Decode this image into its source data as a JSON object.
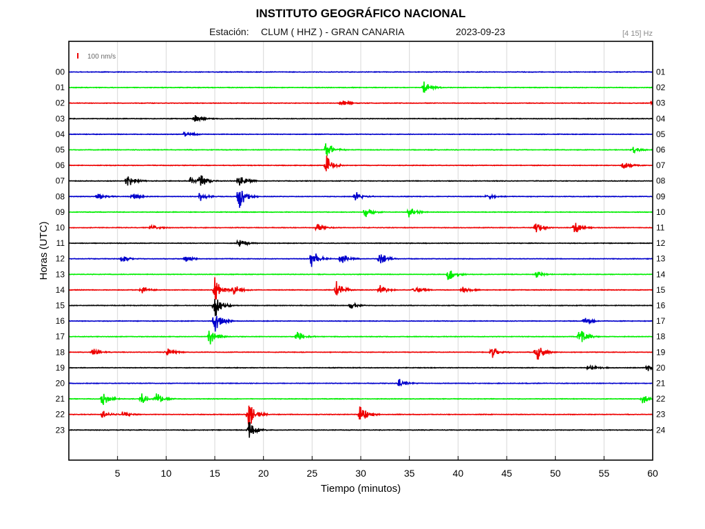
{
  "chart_data": {
    "type": "line",
    "title": "INSTITUTO GEOGRÁFICO NACIONAL",
    "station_label": "Estación:",
    "station": "CLUM ( HHZ ) - GRAN CANARIA",
    "date": "2023-09-23",
    "filter": "[4 15] Hz",
    "scale_label": "100 nm/s",
    "xlabel": "Tiempo (minutos)",
    "ylabel": "Horas (UTC)",
    "xlim": [
      0,
      60
    ],
    "x_ticks": [
      "5",
      "10",
      "15",
      "20",
      "25",
      "30",
      "35",
      "40",
      "45",
      "50",
      "55",
      "60"
    ],
    "left_labels": [
      "00",
      "01",
      "02",
      "03",
      "04",
      "05",
      "06",
      "07",
      "08",
      "09",
      "10",
      "11",
      "12",
      "13",
      "14",
      "15",
      "16",
      "17",
      "18",
      "19",
      "20",
      "21",
      "22",
      "23"
    ],
    "right_labels": [
      "01",
      "02",
      "03",
      "04",
      "05",
      "06",
      "07",
      "08",
      "09",
      "10",
      "11",
      "12",
      "13",
      "14",
      "15",
      "16",
      "17",
      "18",
      "19",
      "20",
      "21",
      "22",
      "23",
      "24"
    ],
    "grid": true,
    "trace_colors": [
      "#0000cc",
      "#00ee00",
      "#ee0000",
      "#000000"
    ],
    "series": [
      {
        "events": []
      },
      {
        "events": [
          [
            36.5,
            1.0
          ]
        ]
      },
      {
        "events": [
          [
            28,
            0.5
          ],
          [
            60,
            0.6
          ]
        ]
      },
      {
        "events": [
          [
            13,
            0.5
          ]
        ]
      },
      {
        "events": [
          [
            12,
            0.6
          ]
        ]
      },
      {
        "events": [
          [
            26.5,
            1.5
          ],
          [
            58,
            0.5
          ]
        ]
      },
      {
        "events": [
          [
            26.5,
            1.5
          ],
          [
            57,
            0.6
          ]
        ]
      },
      {
        "events": [
          [
            6,
            1.2
          ],
          [
            12.5,
            0.6
          ],
          [
            13.5,
            1.0
          ],
          [
            17.5,
            1.2
          ]
        ]
      },
      {
        "events": [
          [
            3,
            0.6
          ],
          [
            6.5,
            0.6
          ],
          [
            13.5,
            0.8
          ],
          [
            17.5,
            2.0
          ],
          [
            29.5,
            0.8
          ],
          [
            43,
            0.4
          ]
        ]
      },
      {
        "events": [
          [
            30.5,
            1.0
          ],
          [
            35,
            0.9
          ]
        ]
      },
      {
        "events": [
          [
            8.5,
            0.5
          ],
          [
            25.5,
            0.6
          ],
          [
            48,
            1.0
          ],
          [
            52,
            1.1
          ]
        ]
      },
      {
        "events": [
          [
            17.5,
            0.9
          ]
        ]
      },
      {
        "events": [
          [
            5.5,
            0.5
          ],
          [
            12,
            0.5
          ],
          [
            25,
            1.6
          ],
          [
            28,
            1.0
          ],
          [
            32,
            1.1
          ]
        ]
      },
      {
        "events": [
          [
            39,
            1.2
          ],
          [
            48,
            0.6
          ]
        ]
      },
      {
        "events": [
          [
            7.5,
            0.7
          ],
          [
            15,
            2.0
          ],
          [
            17,
            0.9
          ],
          [
            27.5,
            1.5
          ],
          [
            32,
            0.8
          ],
          [
            35.5,
            0.7
          ],
          [
            40.5,
            0.6
          ]
        ]
      },
      {
        "events": [
          [
            15,
            2.0
          ],
          [
            29,
            0.5
          ]
        ]
      },
      {
        "events": [
          [
            15,
            1.8
          ],
          [
            53,
            0.6
          ]
        ]
      },
      {
        "events": [
          [
            14.5,
            1.3
          ],
          [
            23.5,
            0.9
          ],
          [
            52.5,
            1.3
          ]
        ]
      },
      {
        "events": [
          [
            2.5,
            0.6
          ],
          [
            10,
            0.8
          ],
          [
            43.5,
            1.0
          ],
          [
            48,
            1.8
          ]
        ]
      },
      {
        "events": [
          [
            53.5,
            0.8
          ],
          [
            59.5,
            0.5
          ]
        ]
      },
      {
        "events": [
          [
            34,
            0.8
          ]
        ]
      },
      {
        "events": [
          [
            3.5,
            1.2
          ],
          [
            7.5,
            0.8
          ],
          [
            9,
            0.9
          ],
          [
            59,
            0.8
          ]
        ]
      },
      {
        "events": [
          [
            3.5,
            0.6
          ],
          [
            5.5,
            0.5
          ],
          [
            18.5,
            2.5
          ],
          [
            30,
            1.8
          ]
        ]
      },
      {
        "events": [
          [
            18.5,
            1.5
          ]
        ]
      }
    ]
  }
}
